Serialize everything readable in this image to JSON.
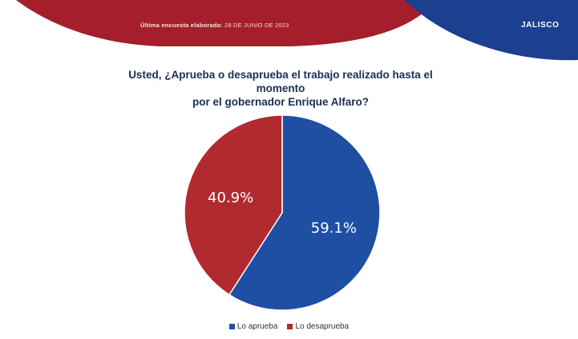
{
  "header": {
    "survey_label": "Última encuesta elaborada:",
    "survey_date": "28 DE JUNIO DE 2023",
    "state": "JALISCO"
  },
  "colors": {
    "banner_red": "#a41f2b",
    "banner_blue": "#1d3f8f",
    "title": "#1e2d57",
    "approve": "#1f4fa3",
    "disapprove": "#b02a30"
  },
  "chart_data": {
    "type": "pie",
    "title": "Usted, ¿Aprueba o desaprueba el trabajo realizado hasta el momento por el gobernador Enrique Alfaro?",
    "title_lines": [
      "Usted, ¿Aprueba o desaprueba el trabajo realizado hasta el momento",
      "por el gobernador Enrique Alfaro?"
    ],
    "slices": [
      {
        "label": "Lo aprueba",
        "value": 59.1,
        "display": "59.1%",
        "color": "#1f4fa3"
      },
      {
        "label": "Lo desaprueba",
        "value": 40.9,
        "display": "40.9%",
        "color": "#b02a30"
      }
    ],
    "legend_position": "bottom"
  }
}
